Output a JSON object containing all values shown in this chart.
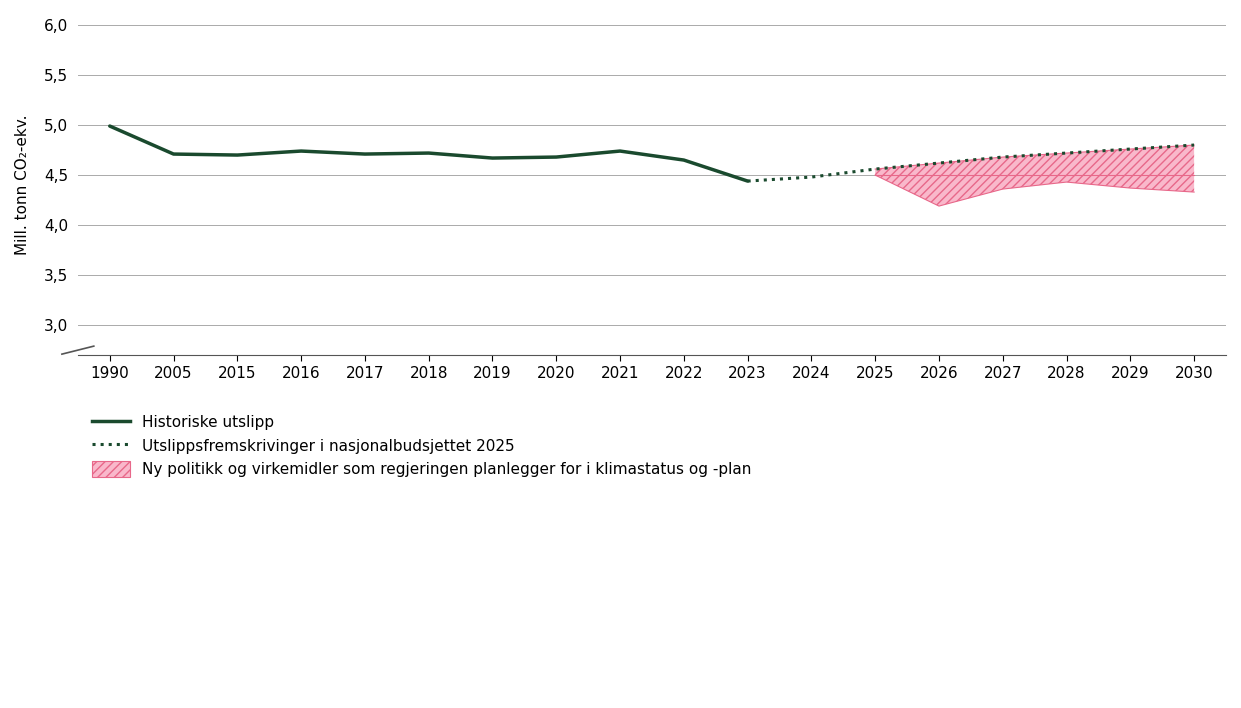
{
  "historical_years": [
    1990,
    2005,
    2015,
    2016,
    2017,
    2018,
    2019,
    2020,
    2021,
    2022,
    2023
  ],
  "historical_values": [
    4.99,
    4.71,
    4.7,
    4.74,
    4.71,
    4.72,
    4.67,
    4.68,
    4.74,
    4.65,
    4.44
  ],
  "projection_years": [
    2023,
    2024,
    2025,
    2026,
    2027,
    2028,
    2029,
    2030
  ],
  "projection_values": [
    4.44,
    4.48,
    4.56,
    4.62,
    4.68,
    4.72,
    4.76,
    4.8
  ],
  "new_policy_upper": [
    4.56,
    4.62,
    4.68,
    4.72,
    4.76,
    4.8
  ],
  "new_policy_lower": [
    4.5,
    4.19,
    4.36,
    4.43,
    4.37,
    4.33
  ],
  "new_policy_years": [
    2025,
    2026,
    2027,
    2028,
    2029,
    2030
  ],
  "flat_line_value": 4.5,
  "flat_line_years": [
    2025,
    2030
  ],
  "x_tick_labels": [
    "1990",
    "2005",
    "2015",
    "2016",
    "2017",
    "2018",
    "2019",
    "2020",
    "2021",
    "2022",
    "2023",
    "2024",
    "2025",
    "2026",
    "2027",
    "2028",
    "2029",
    "2030"
  ],
  "ylim": [
    2.7,
    6.1
  ],
  "yticks": [
    3.0,
    3.5,
    4.0,
    4.5,
    5.0,
    5.5,
    6.0
  ],
  "ylabel": "Mill. tonn CO₂-ekv.",
  "line_color": "#1a4a2e",
  "projection_color": "#1a4a2e",
  "fill_color": "#f9b8cb",
  "fill_edge_color": "#e8688a",
  "background_color": "#ffffff",
  "legend_labels": [
    "Historiske utslipp",
    "Utslippsfremskrivinger i nasjonalbudsjettet 2025",
    "Ny politikk og virkemidler som regjeringen planlegger for i klimastatus og -plan"
  ],
  "gridline_color": "#aaaaaa"
}
